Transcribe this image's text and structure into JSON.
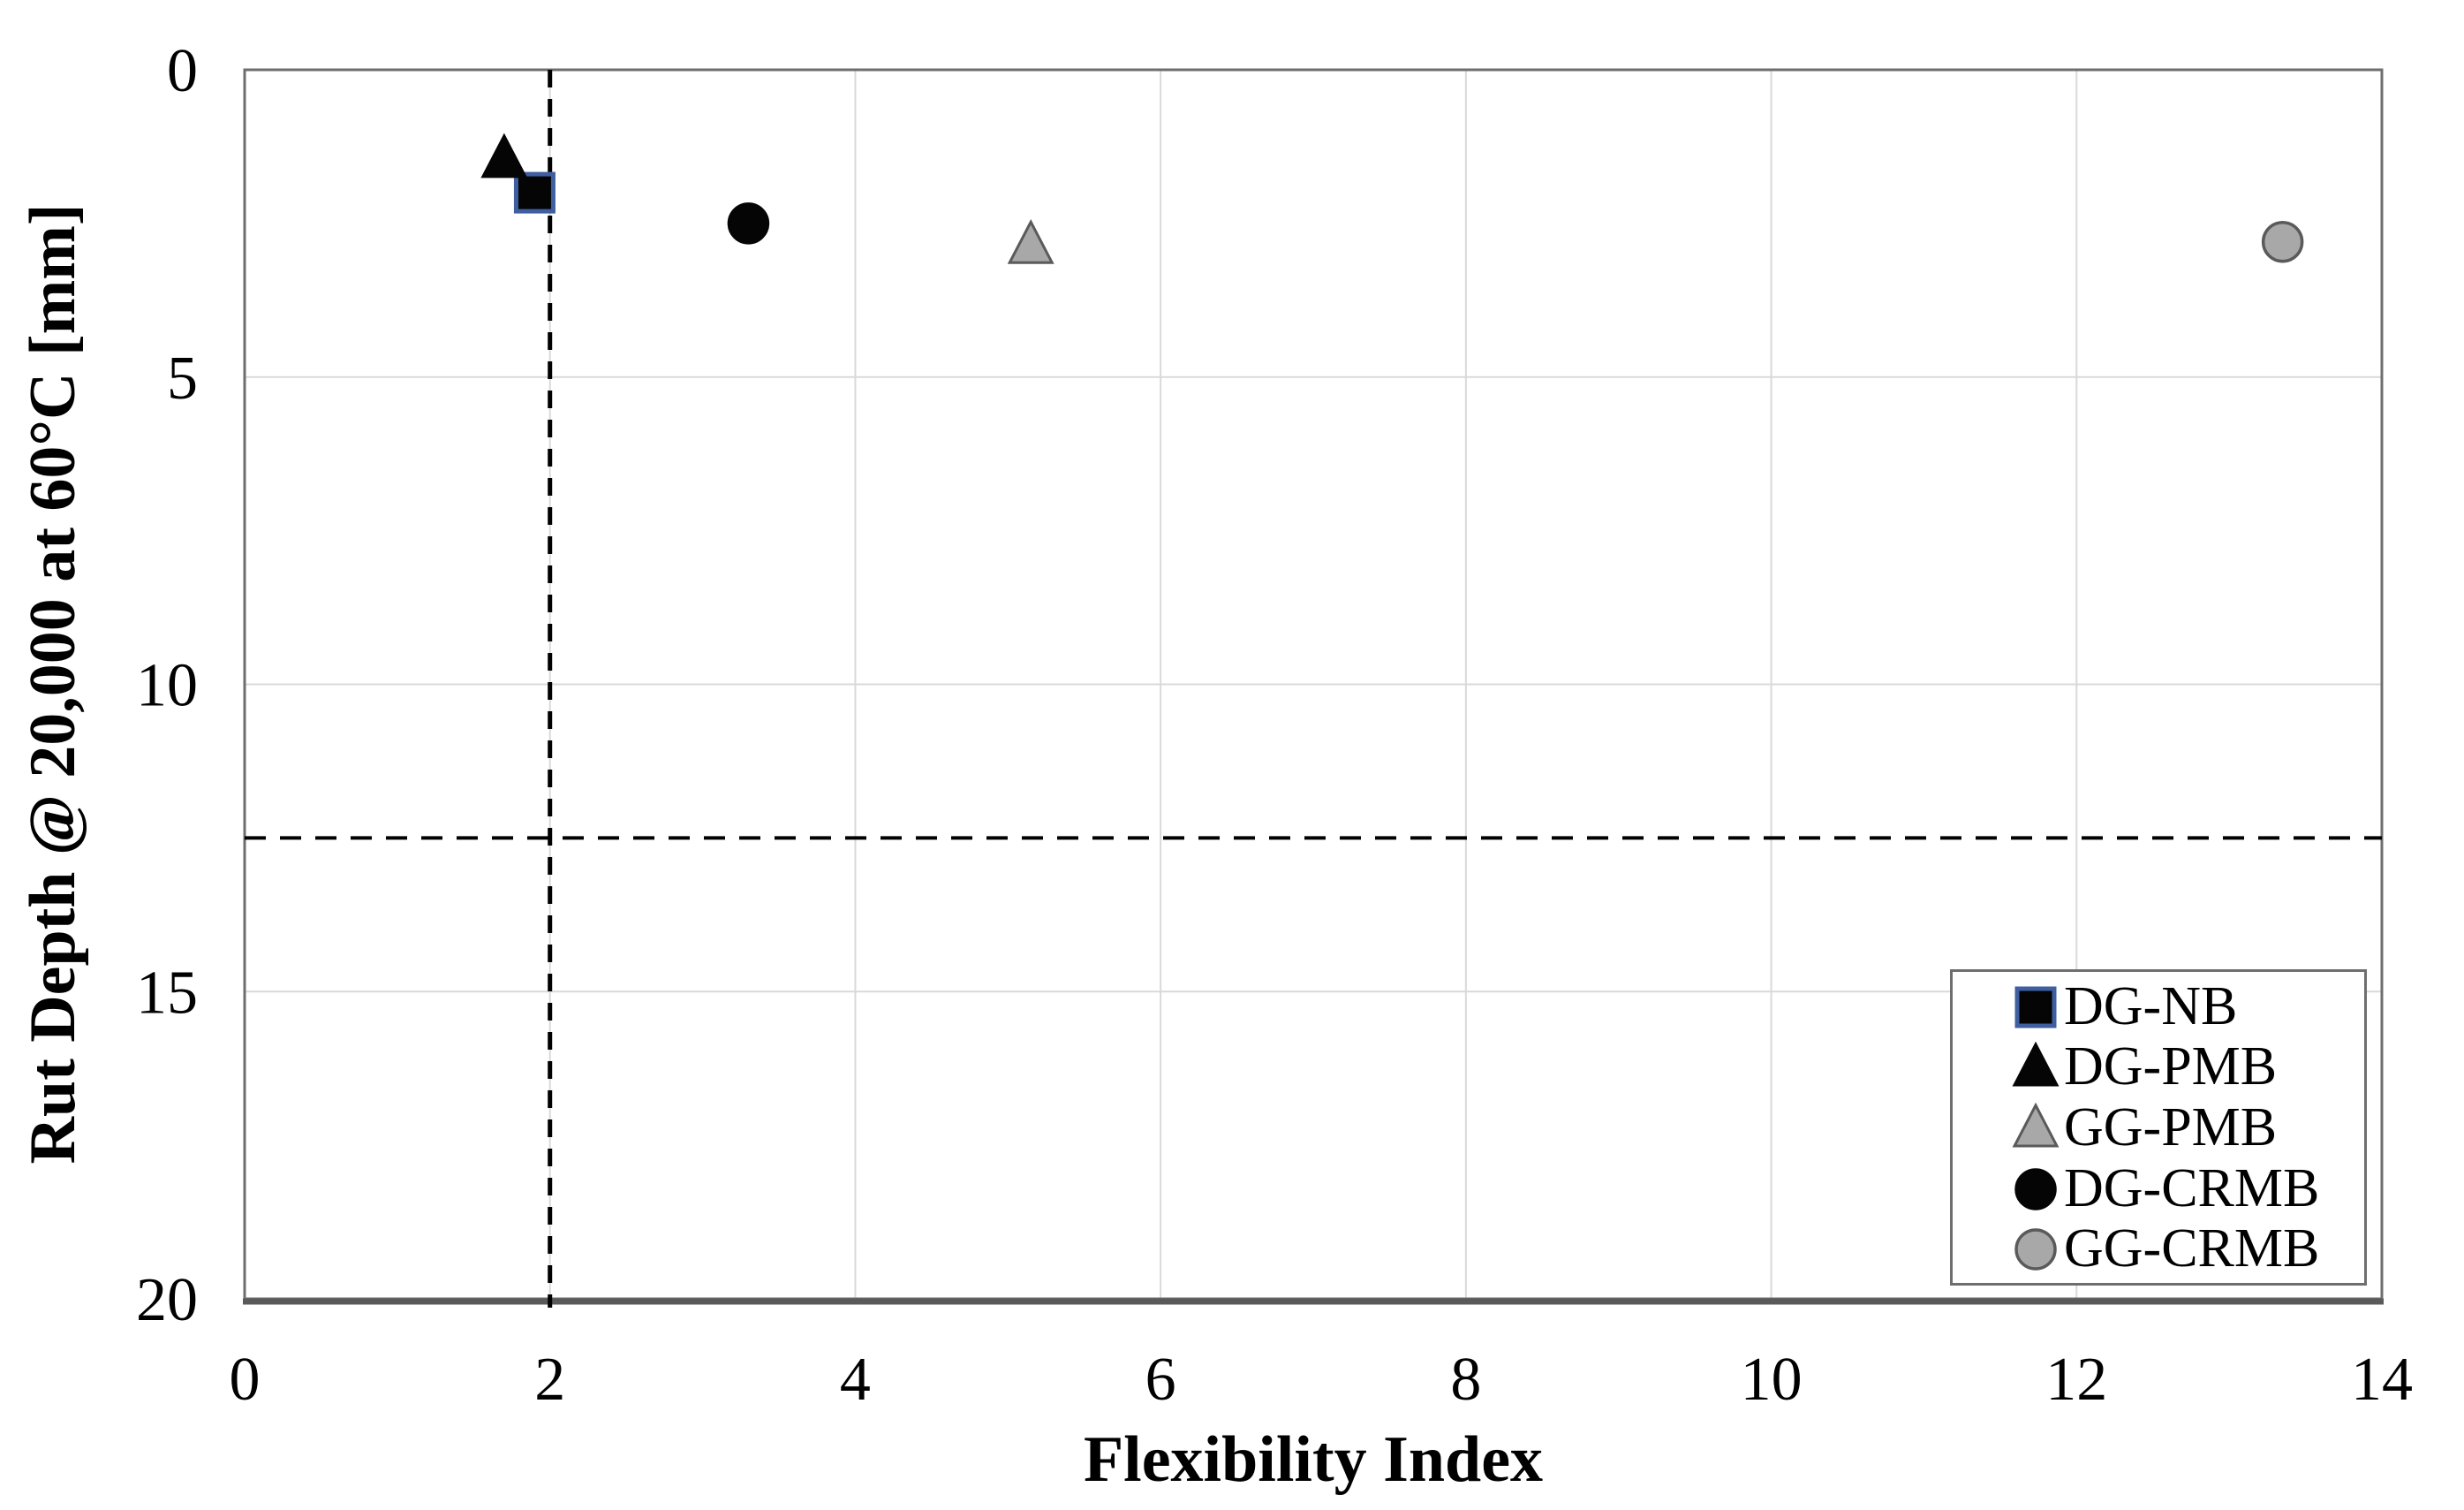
{
  "chart_data": {
    "type": "scatter",
    "title": "",
    "xlabel": "Flexibility Index",
    "ylabel": "Rut Depth @ 20,000 at 60°C [mm]",
    "x_axis": {
      "min": 0,
      "max": 14,
      "ticks": [
        0,
        2,
        4,
        6,
        8,
        10,
        12,
        14
      ],
      "gridlines": [
        2,
        4,
        6,
        8,
        10,
        12
      ]
    },
    "y_axis": {
      "min": 0,
      "max": 20,
      "ticks": [
        0,
        5,
        10,
        15,
        20
      ],
      "gridlines": [
        5,
        10,
        15
      ],
      "inverted": true
    },
    "grid_on": true,
    "reference_lines": [
      {
        "axis": "x",
        "value": 2,
        "style": "dashed",
        "color": "#000000"
      },
      {
        "axis": "y",
        "value": 12.5,
        "style": "dashed",
        "color": "#000000"
      }
    ],
    "series": [
      {
        "name": "DG-NB",
        "marker": "square",
        "fill": "#050505",
        "stroke": "#3f5fa0",
        "points": [
          {
            "x": 1.9,
            "y": 2.0
          }
        ]
      },
      {
        "name": "DG-PMB",
        "marker": "triangle",
        "fill": "#050505",
        "stroke": "#050505",
        "points": [
          {
            "x": 1.7,
            "y": 1.45
          }
        ]
      },
      {
        "name": "GG-PMB",
        "marker": "triangle",
        "fill": "#a8a8a8",
        "stroke": "#5a5a5a",
        "points": [
          {
            "x": 5.15,
            "y": 2.85
          }
        ]
      },
      {
        "name": "DG-CRMB",
        "marker": "circle",
        "fill": "#050505",
        "stroke": "#050505",
        "points": [
          {
            "x": 3.3,
            "y": 2.5
          }
        ]
      },
      {
        "name": "GG-CRMB",
        "marker": "circle",
        "fill": "#a8a8a8",
        "stroke": "#5a5a5a",
        "points": [
          {
            "x": 13.35,
            "y": 2.8
          }
        ]
      }
    ],
    "legend": {
      "position": "bottom-right",
      "items": [
        "DG-NB",
        "DG-PMB",
        "GG-PMB",
        "DG-CRMB",
        "GG-CRMB"
      ]
    },
    "colors": {
      "background": "#ffffff",
      "grid": "#d9d9d9",
      "axis_box": "#6e6e6e",
      "axis_bottom": "#5a5a5a",
      "text": "#000000"
    }
  }
}
